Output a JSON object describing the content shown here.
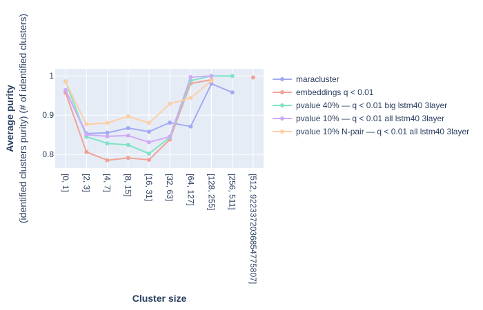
{
  "chart_data": {
    "type": "line",
    "xlabel": "Cluster size",
    "ylabel": "Average purity",
    "ylabel_sub": "(identified clusters purity) (# of identified clusters)",
    "categories": [
      "[0, 1]",
      "[2, 3]",
      "[4, 7]",
      "[8, 15]",
      "[16, 31]",
      "[32, 63]",
      "[64, 127]",
      "[128, 255]",
      "[256, 511]",
      "[512, 9223372036854775807]"
    ],
    "y_ticks": [
      0.8,
      0.9,
      1
    ],
    "y_tick_labels": [
      "0.8",
      "0.9",
      "1"
    ],
    "ylim": [
      0.765,
      1.018
    ],
    "grid": true,
    "legend_position": "right",
    "series": [
      {
        "name": "maracluster",
        "color": "#a3aaf2",
        "values": [
          0.963,
          0.853,
          0.855,
          0.867,
          0.858,
          0.881,
          0.871,
          0.98,
          0.958,
          null
        ]
      },
      {
        "name": "embeddings q < 0.01",
        "color": "#f2a196",
        "values": [
          0.957,
          0.806,
          0.785,
          0.791,
          0.786,
          0.838,
          0.981,
          0.99,
          null,
          0.996
        ]
      },
      {
        "name": "pvalue 40% — q < 0.01 big lstm40 3layer",
        "color": "#7fe3c6",
        "values": [
          0.986,
          0.845,
          0.828,
          0.824,
          0.802,
          0.843,
          0.988,
          1.0,
          1.0,
          null
        ]
      },
      {
        "name": "pvalue 10% — q < 0.01 all lstm40 3layer",
        "color": "#cfaaf7",
        "values": [
          0.964,
          0.85,
          0.846,
          0.848,
          0.831,
          0.845,
          0.997,
          1.0,
          null,
          null
        ]
      },
      {
        "name": "pvalue 10% N-pair — q < 0.01 all lstm40 3layer",
        "color": "#fdcfa5",
        "values": [
          0.985,
          0.877,
          0.88,
          0.897,
          0.88,
          0.929,
          0.944,
          0.988,
          null,
          null
        ]
      }
    ]
  }
}
